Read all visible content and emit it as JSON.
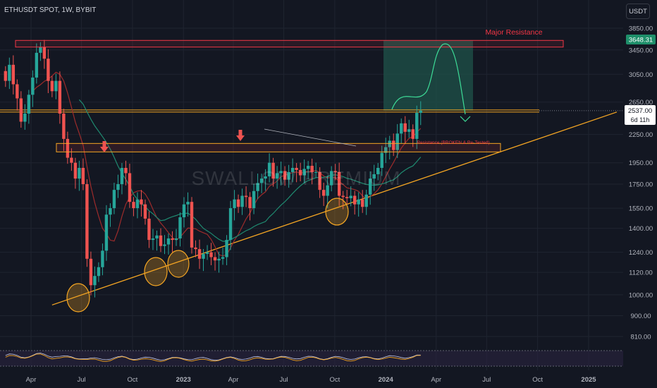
{
  "header": {
    "symbol": "ETHUSDT SPOT, 1W, BYBIT",
    "currency": "USDT"
  },
  "watermark": "SWALLOW PREMIUM",
  "annotations": {
    "major_resistance": "Major Resistance",
    "resistance_note": "Resistance (BROKEN & Re-Tested)"
  },
  "price_tags": {
    "top_price": "3648.31",
    "last_price": "2537.00",
    "countdown": "6d 11h"
  },
  "colors": {
    "background": "#131722",
    "up": "#26a69a",
    "down": "#ef5350",
    "resistance_box": "#f23645",
    "support_line": "#f5a623",
    "target_zone": "#1e4f47",
    "sma_red": "#9c2b2b",
    "sma_green": "#1f8a70",
    "grid": "#1f2430"
  },
  "chart_data": {
    "type": "candlestick",
    "y_scale": "log",
    "y_ticks": [
      3850,
      3450,
      3050,
      2650,
      2250,
      1950,
      1750,
      1550,
      1400,
      1240,
      1120,
      1000,
      900,
      810
    ],
    "y_tick_labels": [
      "3850.00",
      "3450.00",
      "3050.00",
      "2650.00",
      "2250.00",
      "1950.00",
      "1750.00",
      "1550.00",
      "1400.00",
      "1240.00",
      "1120.00",
      "1000.00",
      "900.00",
      "810.00"
    ],
    "x_ticks": [
      "2022-04-01",
      "2022-07-01",
      "2022-10-01",
      "2023-01-01",
      "2023-04-01",
      "2023-07-01",
      "2023-10-01",
      "2024-01-01",
      "2024-04-01",
      "2024-07-01",
      "2024-10-01",
      "2025-01-01"
    ],
    "x_tick_labels": [
      "Apr",
      "Jul",
      "Oct",
      "2023",
      "Apr",
      "Jul",
      "Oct",
      "2024",
      "Apr",
      "Jul",
      "Oct",
      "2025"
    ],
    "weekly_closes": [
      2950,
      3200,
      2900,
      2700,
      2400,
      2500,
      2750,
      3000,
      3400,
      3500,
      3300,
      2950,
      2800,
      2950,
      2500,
      2200,
      2000,
      1950,
      1800,
      1900,
      1750,
      1200,
      1050,
      1100,
      1150,
      1250,
      1500,
      1550,
      1700,
      1750,
      1900,
      1850,
      1600,
      1550,
      1620,
      1580,
      1470,
      1320,
      1330,
      1350,
      1280,
      1290,
      1330,
      1320,
      1330,
      1480,
      1580,
      1600,
      1270,
      1260,
      1200,
      1230,
      1240,
      1210,
      1190,
      1200,
      1210,
      1320,
      1550,
      1620,
      1560,
      1650,
      1640,
      1550,
      1690,
      1760,
      1800,
      1820,
      1950,
      1800,
      1850,
      1870,
      1790,
      1860,
      1900,
      1880,
      1830,
      1890,
      1920,
      1860,
      1860,
      1700,
      1650,
      1740,
      1870,
      1860,
      1650,
      1640,
      1630,
      1650,
      1580,
      1620,
      1560,
      1660,
      1800,
      1840,
      1900,
      2050,
      2110,
      2180,
      2080,
      2260,
      2380,
      2280,
      2310,
      2200,
      2510,
      2537
    ],
    "target_path_peak": 3648.31,
    "levels": {
      "major_resistance_low": 3500,
      "major_resistance_high": 3620,
      "resistance_low": 2060,
      "resistance_high": 2150,
      "horizontal_line": 2537
    }
  }
}
